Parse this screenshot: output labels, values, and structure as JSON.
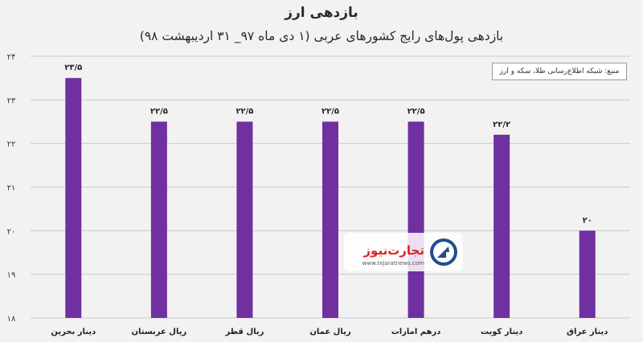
{
  "title": "بازدهی ارز",
  "subtitle": "بازدهی پول‌های رایج کشورهای عربی (۱ دی ماه ۹۷_ ۳۱ اردیبهشت ۹۸)",
  "source": "منبع: شبکه اطلاع‌رسانی طلا، سکه و ارز",
  "logo": {
    "name": "تجارت‌نیوز",
    "url": "www.tejaratnews.com"
  },
  "colors": {
    "bar": "#7030a0",
    "grid": "#c9c9c9",
    "background": "#f2f2f2"
  },
  "chart_data": {
    "type": "bar",
    "categories": [
      "دینار بحرین",
      "ریال عربستان",
      "ریال قطر",
      "ریال عمان",
      "درهم امارات",
      "دینار کویت",
      "دینار عراق"
    ],
    "values": [
      23.5,
      22.5,
      22.5,
      22.5,
      22.5,
      22.2,
      20
    ],
    "data_labels": [
      "۲۳/۵",
      "۲۲/۵",
      "۲۲/۵",
      "۲۲/۵",
      "۲۲/۵",
      "۲۲/۲",
      "۲۰"
    ],
    "y_ticks": [
      18,
      19,
      20,
      21,
      22,
      23,
      24
    ],
    "y_tick_labels": [
      "۱۸",
      "۱۹",
      "۲۰",
      "۲۱",
      "۲۲",
      "۲۳",
      "۲۴"
    ],
    "ylim": [
      18,
      24
    ],
    "grid": true
  }
}
